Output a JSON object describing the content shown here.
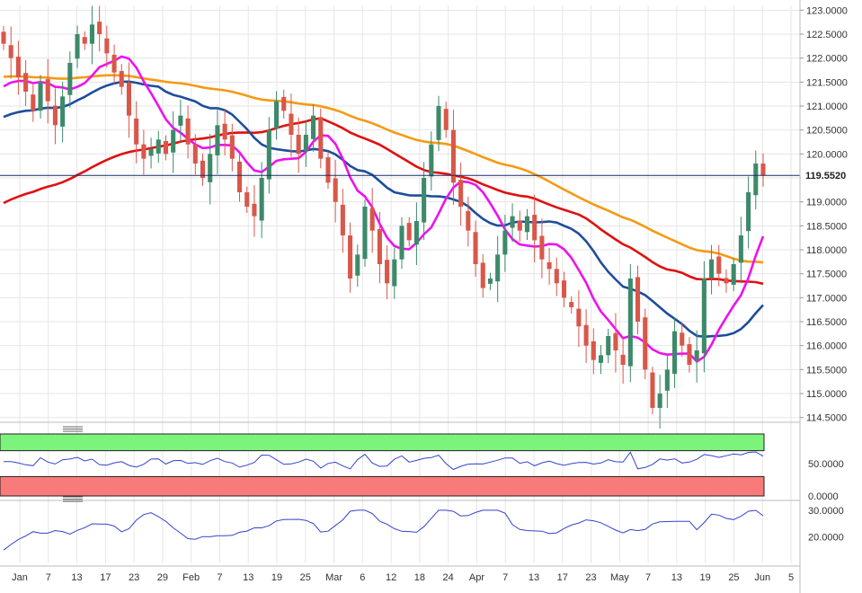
{
  "colors": {
    "up": "#3d8a6a",
    "down": "#d9574a",
    "ma_fast": "#ee11ee",
    "ma_mid": "#1e4e9a",
    "ma_slow": "#e01010",
    "ma_long": "#f59a12",
    "osc_line": "#3344cc",
    "zone_high": "#7cf47c",
    "zone_low": "#f87a7a",
    "grid": "#e6e6e6",
    "last_price_line": "#1a2a66"
  },
  "chart_data": [
    {
      "type": "candlestick",
      "panel": "price",
      "ylim": [
        114.4,
        123.1
      ],
      "y_ticks": [
        "123.0000",
        "122.5000",
        "122.0000",
        "121.5000",
        "121.0000",
        "120.5000",
        "120.0000",
        "119.5000",
        "119.0000",
        "118.5000",
        "118.0000",
        "117.5000",
        "117.0000",
        "116.5000",
        "116.0000",
        "115.5000",
        "115.0000",
        "114.5000"
      ],
      "x_labels": [
        "Jan",
        "7",
        "13",
        "17",
        "23",
        "29",
        "Feb",
        "7",
        "13",
        "19",
        "25",
        "Mar",
        "6",
        "12",
        "18",
        "24",
        "Apr",
        "7",
        "13",
        "17",
        "23",
        "May",
        "7",
        "13",
        "19",
        "25",
        "Jun",
        "5"
      ],
      "last_price": 119.552,
      "last_price_label": "119.5520",
      "closes": [
        122.3,
        122.0,
        121.6,
        121.3,
        120.9,
        121.5,
        121.1,
        120.6,
        121.2,
        121.9,
        122.5,
        122.3,
        122.7,
        122.5,
        122.1,
        121.7,
        121.4,
        120.8,
        120.2,
        119.9,
        120.1,
        120.3,
        120.0,
        120.5,
        120.8,
        120.2,
        119.8,
        119.5,
        120.0,
        120.6,
        120.3,
        119.9,
        119.2,
        118.9,
        118.7,
        119.5,
        120.5,
        121.1,
        120.9,
        120.4,
        120.0,
        120.4,
        120.8,
        119.9,
        119.4,
        119.0,
        118.3,
        117.4,
        117.9,
        118.9,
        118.4,
        117.7,
        117.3,
        117.8,
        118.5,
        118.2,
        118.6,
        119.5,
        120.2,
        121.0,
        120.5,
        119.4,
        118.9,
        118.4,
        117.7,
        117.2,
        117.4,
        117.9,
        118.4,
        118.7,
        118.4,
        118.7,
        118.2,
        117.8,
        117.6,
        117.3,
        117.0,
        116.8,
        116.4,
        116.0,
        115.7,
        115.8,
        116.2,
        115.9,
        115.6,
        117.4,
        116.5,
        115.5,
        114.7,
        115.0,
        115.5,
        116.3,
        116.0,
        115.6,
        115.9,
        117.4,
        117.8,
        117.5,
        117.3,
        117.7,
        118.3,
        119.2,
        119.8,
        119.55
      ]
    },
    {
      "type": "line",
      "panel": "oscillator_1",
      "ylim": [
        0,
        100
      ],
      "y_ticks": [
        "50.0000",
        "0.0000"
      ],
      "upper_zone": [
        70,
        100
      ],
      "lower_zone": [
        0,
        30
      ]
    },
    {
      "type": "line",
      "panel": "oscillator_2",
      "ylim": [
        10,
        32
      ],
      "y_ticks": [
        "30.0000",
        "20.0000"
      ]
    }
  ]
}
